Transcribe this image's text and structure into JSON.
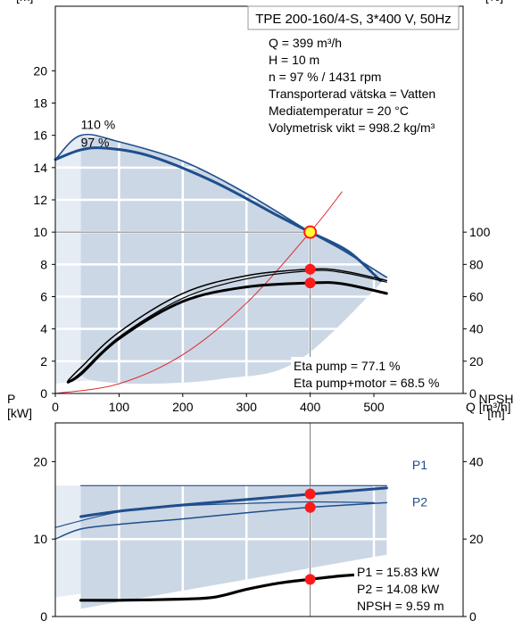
{
  "accent_colors": {
    "operating_range": "#cbd7e5",
    "extended_range": "#e6ecf4",
    "curve_dark_blue": "#1f4e8c",
    "system_curve": "#e0262b",
    "duty_point": "#ff1a1a",
    "duty_point_highlight": "#ffff33",
    "grid": "#ffffff"
  },
  "info_box": {
    "title": "TPE 200-160/4-S, 3*400 V, 50Hz",
    "lines": [
      "Q = 399 m³/h",
      "H = 10 m",
      "n = 97 % / 1431 rpm",
      "Transporterad vätska = Vatten",
      "Mediatemperatur = 20 °C",
      "Volymetrisk vikt = 998.2 kg/m³"
    ]
  },
  "eff_box": {
    "lines": [
      "Eta pump = 77.1 %",
      "Eta pump+motor = 68.5 %"
    ]
  },
  "power_box": {
    "lines": [
      "P1 = 15.83 kW",
      "P2 = 14.08 kW",
      "NPSH = 9.59 m"
    ]
  },
  "chart_data": [
    {
      "type": "line",
      "name": "head-efficiency",
      "xlabel": "Q [m³/h]",
      "ylabel_left": "H\n[m]",
      "ylabel_right": "eta\n[%]",
      "xlim": [
        0,
        640
      ],
      "ylim_left": [
        0,
        24
      ],
      "ylim_right": [
        0,
        240
      ],
      "x_ticks": [
        0,
        100,
        200,
        300,
        400,
        500
      ],
      "y_ticks_left": [
        0,
        2,
        4,
        6,
        8,
        10,
        12,
        14,
        16,
        18,
        20
      ],
      "y_ticks_right": [
        0,
        20,
        40,
        60,
        80,
        100
      ],
      "grid": true,
      "series": [
        {
          "name": "110 %",
          "axis": "left",
          "role": "head",
          "width": 1.6,
          "x": [
            0,
            40,
            100,
            200,
            300,
            400,
            450,
            520
          ],
          "y": [
            14.5,
            16.0,
            15.6,
            14.4,
            12.4,
            10.0,
            8.9,
            7.2
          ]
        },
        {
          "name": "97 %",
          "axis": "left",
          "role": "head",
          "width": 3,
          "x": [
            0,
            40,
            80,
            150,
            250,
            350,
            400,
            460,
            510
          ],
          "y": [
            14.5,
            15.1,
            15.2,
            14.7,
            13.1,
            11.0,
            10.0,
            8.8,
            7.0
          ]
        },
        {
          "axis": "left",
          "role": "system",
          "width": 1,
          "x": [
            0,
            100,
            200,
            300,
            400,
            450
          ],
          "y": [
            0,
            0.6,
            2.4,
            5.6,
            10.0,
            12.5
          ]
        },
        {
          "axis": "right",
          "role": "eta",
          "width": 1.5,
          "x": [
            20,
            40,
            100,
            200,
            300,
            400,
            450,
            520
          ],
          "y": [
            8,
            16,
            38,
            62,
            73,
            77,
            76,
            70
          ]
        },
        {
          "axis": "right",
          "role": "eta",
          "width": 1.2,
          "x": [
            20,
            40,
            100,
            200,
            300,
            400,
            450,
            520
          ],
          "y": [
            7,
            13,
            35,
            59,
            71,
            76,
            75,
            69
          ]
        },
        {
          "axis": "right",
          "role": "eta",
          "width": 3,
          "x": [
            20,
            40,
            100,
            200,
            300,
            400,
            450,
            520
          ],
          "y": [
            7,
            12,
            34,
            57,
            66,
            68.5,
            68,
            62
          ]
        }
      ],
      "bands": [
        {
          "fill": "extended",
          "upper_x": [
            0,
            40,
            100,
            200,
            300,
            400,
            520
          ],
          "upper_y": [
            14.5,
            16.0,
            15.6,
            14.4,
            12.4,
            10.0,
            7.2
          ],
          "lower_x": [
            0,
            60,
            140,
            260,
            380,
            520
          ],
          "lower_y": [
            0.6,
            0.8,
            0.6,
            0.9,
            2.0,
            7.2
          ]
        },
        {
          "fill": "operating",
          "upper_x": [
            40,
            100,
            200,
            300,
            400,
            520
          ],
          "upper_y": [
            16.0,
            15.6,
            14.4,
            12.4,
            10.0,
            7.2
          ],
          "lower_x": [
            40,
            60,
            140,
            260,
            380,
            520
          ],
          "lower_y": [
            1.2,
            0.8,
            0.6,
            0.9,
            2.0,
            7.2
          ]
        }
      ],
      "duty_points": [
        {
          "x": 400,
          "y": 10.0,
          "axis": "left",
          "highlight": true
        },
        {
          "x": 400,
          "y": 77,
          "axis": "right"
        },
        {
          "x": 400,
          "y": 68.5,
          "axis": "right"
        }
      ],
      "annotations": [
        {
          "text": "110 %",
          "x": 40,
          "y": 16.4
        },
        {
          "text": "97 %",
          "x": 40,
          "y": 15.3
        }
      ]
    },
    {
      "type": "line",
      "name": "power-npsh",
      "ylabel_left": "P\n[kW]",
      "ylabel_right": "NPSH\n[m]",
      "xlim": [
        0,
        640
      ],
      "ylim_left": [
        0,
        25
      ],
      "ylim_right": [
        0,
        50
      ],
      "y_ticks_left": [
        0,
        10,
        20
      ],
      "y_ticks_right": [
        0,
        20,
        40
      ],
      "grid": true,
      "series": [
        {
          "name": "P1",
          "axis": "left",
          "role": "p1",
          "width": 3,
          "x": [
            40,
            100,
            200,
            300,
            400,
            520
          ],
          "y": [
            12.9,
            13.6,
            14.4,
            15.1,
            15.8,
            16.6
          ]
        },
        {
          "name": "P2",
          "axis": "left",
          "role": "p2",
          "width": 1.5,
          "x": [
            0,
            40,
            100,
            200,
            300,
            400,
            520
          ],
          "y": [
            10.0,
            11.3,
            11.9,
            12.6,
            13.4,
            14.1,
            14.7
          ]
        },
        {
          "axis": "left",
          "role": "p-upper",
          "width": 1.2,
          "x": [
            40,
            520
          ],
          "y": [
            16.9,
            16.9
          ]
        },
        {
          "axis": "left",
          "role": "p-mid",
          "width": 1.2,
          "x": [
            0,
            100,
            200,
            300,
            400,
            500
          ],
          "y": [
            11.5,
            13.5,
            14.3,
            14.6,
            14.8,
            14.7
          ]
        },
        {
          "name": "NPSH",
          "axis": "right",
          "role": "npsh",
          "width": 3.2,
          "x": [
            40,
            100,
            200,
            250,
            300,
            350,
            400,
            450,
            500
          ],
          "y": [
            4.2,
            4.2,
            4.5,
            5.0,
            7.0,
            8.6,
            9.6,
            10.5,
            11.0
          ]
        }
      ],
      "bands": [
        {
          "fill": "extended",
          "upper_x": [
            0,
            520
          ],
          "upper_y": [
            16.9,
            16.9
          ],
          "lower_x": [
            0,
            520
          ],
          "lower_y": [
            2.5,
            8.0
          ]
        },
        {
          "fill": "operating",
          "upper_x": [
            40,
            520
          ],
          "upper_y": [
            16.9,
            16.9
          ],
          "lower_x": [
            40,
            520
          ],
          "lower_y": [
            1.0,
            8.0
          ]
        }
      ],
      "duty_points": [
        {
          "x": 400,
          "y": 15.83,
          "axis": "left"
        },
        {
          "x": 400,
          "y": 14.08,
          "axis": "left"
        },
        {
          "x": 400,
          "y": 9.59,
          "axis": "right"
        }
      ],
      "annotations": [
        {
          "text": "P1",
          "x": 560,
          "y": 19.0
        },
        {
          "text": "P2",
          "x": 560,
          "y": 14.2
        }
      ]
    }
  ]
}
